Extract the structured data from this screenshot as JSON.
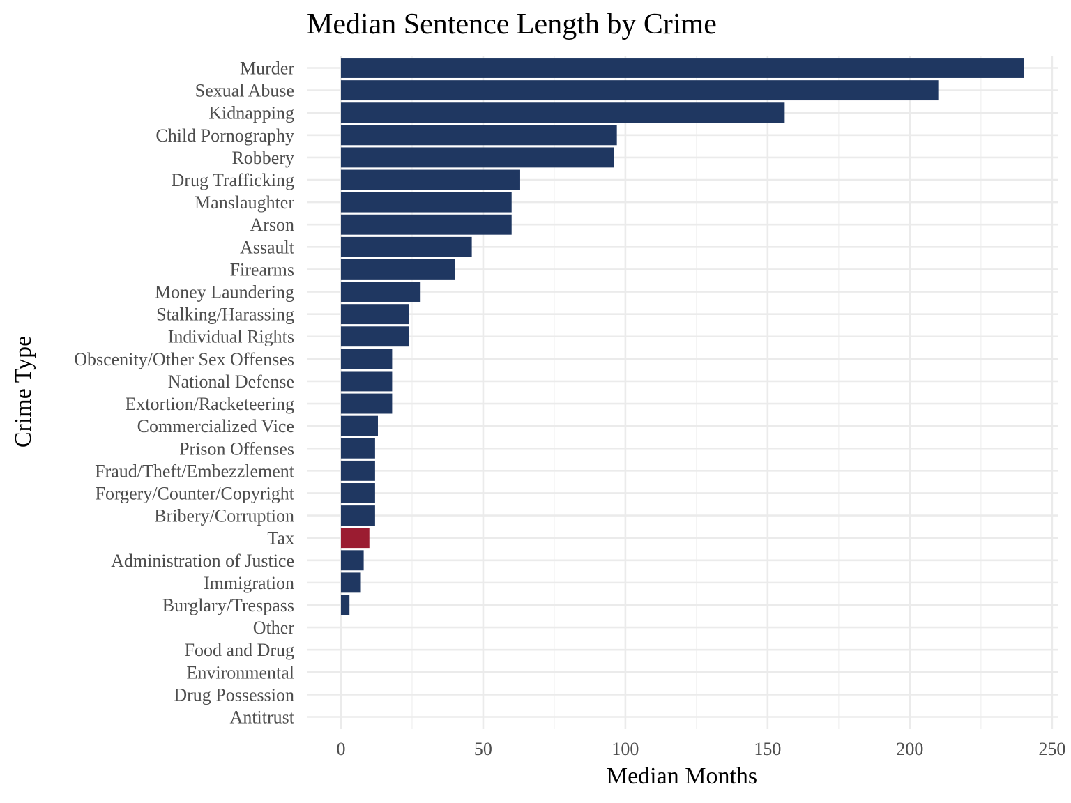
{
  "chart_data": {
    "type": "bar",
    "orientation": "horizontal",
    "title": "Median Sentence Length by Crime",
    "xlabel": "Median Months",
    "ylabel": "Crime Type",
    "xlim": [
      -12,
      252
    ],
    "xticks": [
      0,
      50,
      100,
      150,
      200,
      250
    ],
    "xtick_labels": [
      "0",
      "50",
      "100",
      "150",
      "200",
      "250"
    ],
    "grid": true,
    "legend": "none",
    "default_color": "#1f3761",
    "highlight_color": "#9b1c31",
    "highlight_category": "Tax",
    "categories": [
      "Murder",
      "Sexual Abuse",
      "Kidnapping",
      "Child Pornography",
      "Robbery",
      "Drug Trafficking",
      "Manslaughter",
      "Arson",
      "Assault",
      "Firearms",
      "Money Laundering",
      "Stalking/Harassing",
      "Individual Rights",
      "Obscenity/Other Sex Offenses",
      "National Defense",
      "Extortion/Racketeering",
      "Commercialized Vice",
      "Prison Offenses",
      "Fraud/Theft/Embezzlement",
      "Forgery/Counter/Copyright",
      "Bribery/Corruption",
      "Tax",
      "Administration of Justice",
      "Immigration",
      "Burglary/Trespass",
      "Other",
      "Food and Drug",
      "Environmental",
      "Drug Possession",
      "Antitrust"
    ],
    "values": [
      240,
      210,
      156,
      97,
      96,
      63,
      60,
      60,
      46,
      40,
      28,
      24,
      24,
      18,
      18,
      18,
      13,
      12,
      12,
      12,
      12,
      10,
      8,
      7,
      3,
      0,
      0,
      0,
      0,
      0
    ]
  }
}
